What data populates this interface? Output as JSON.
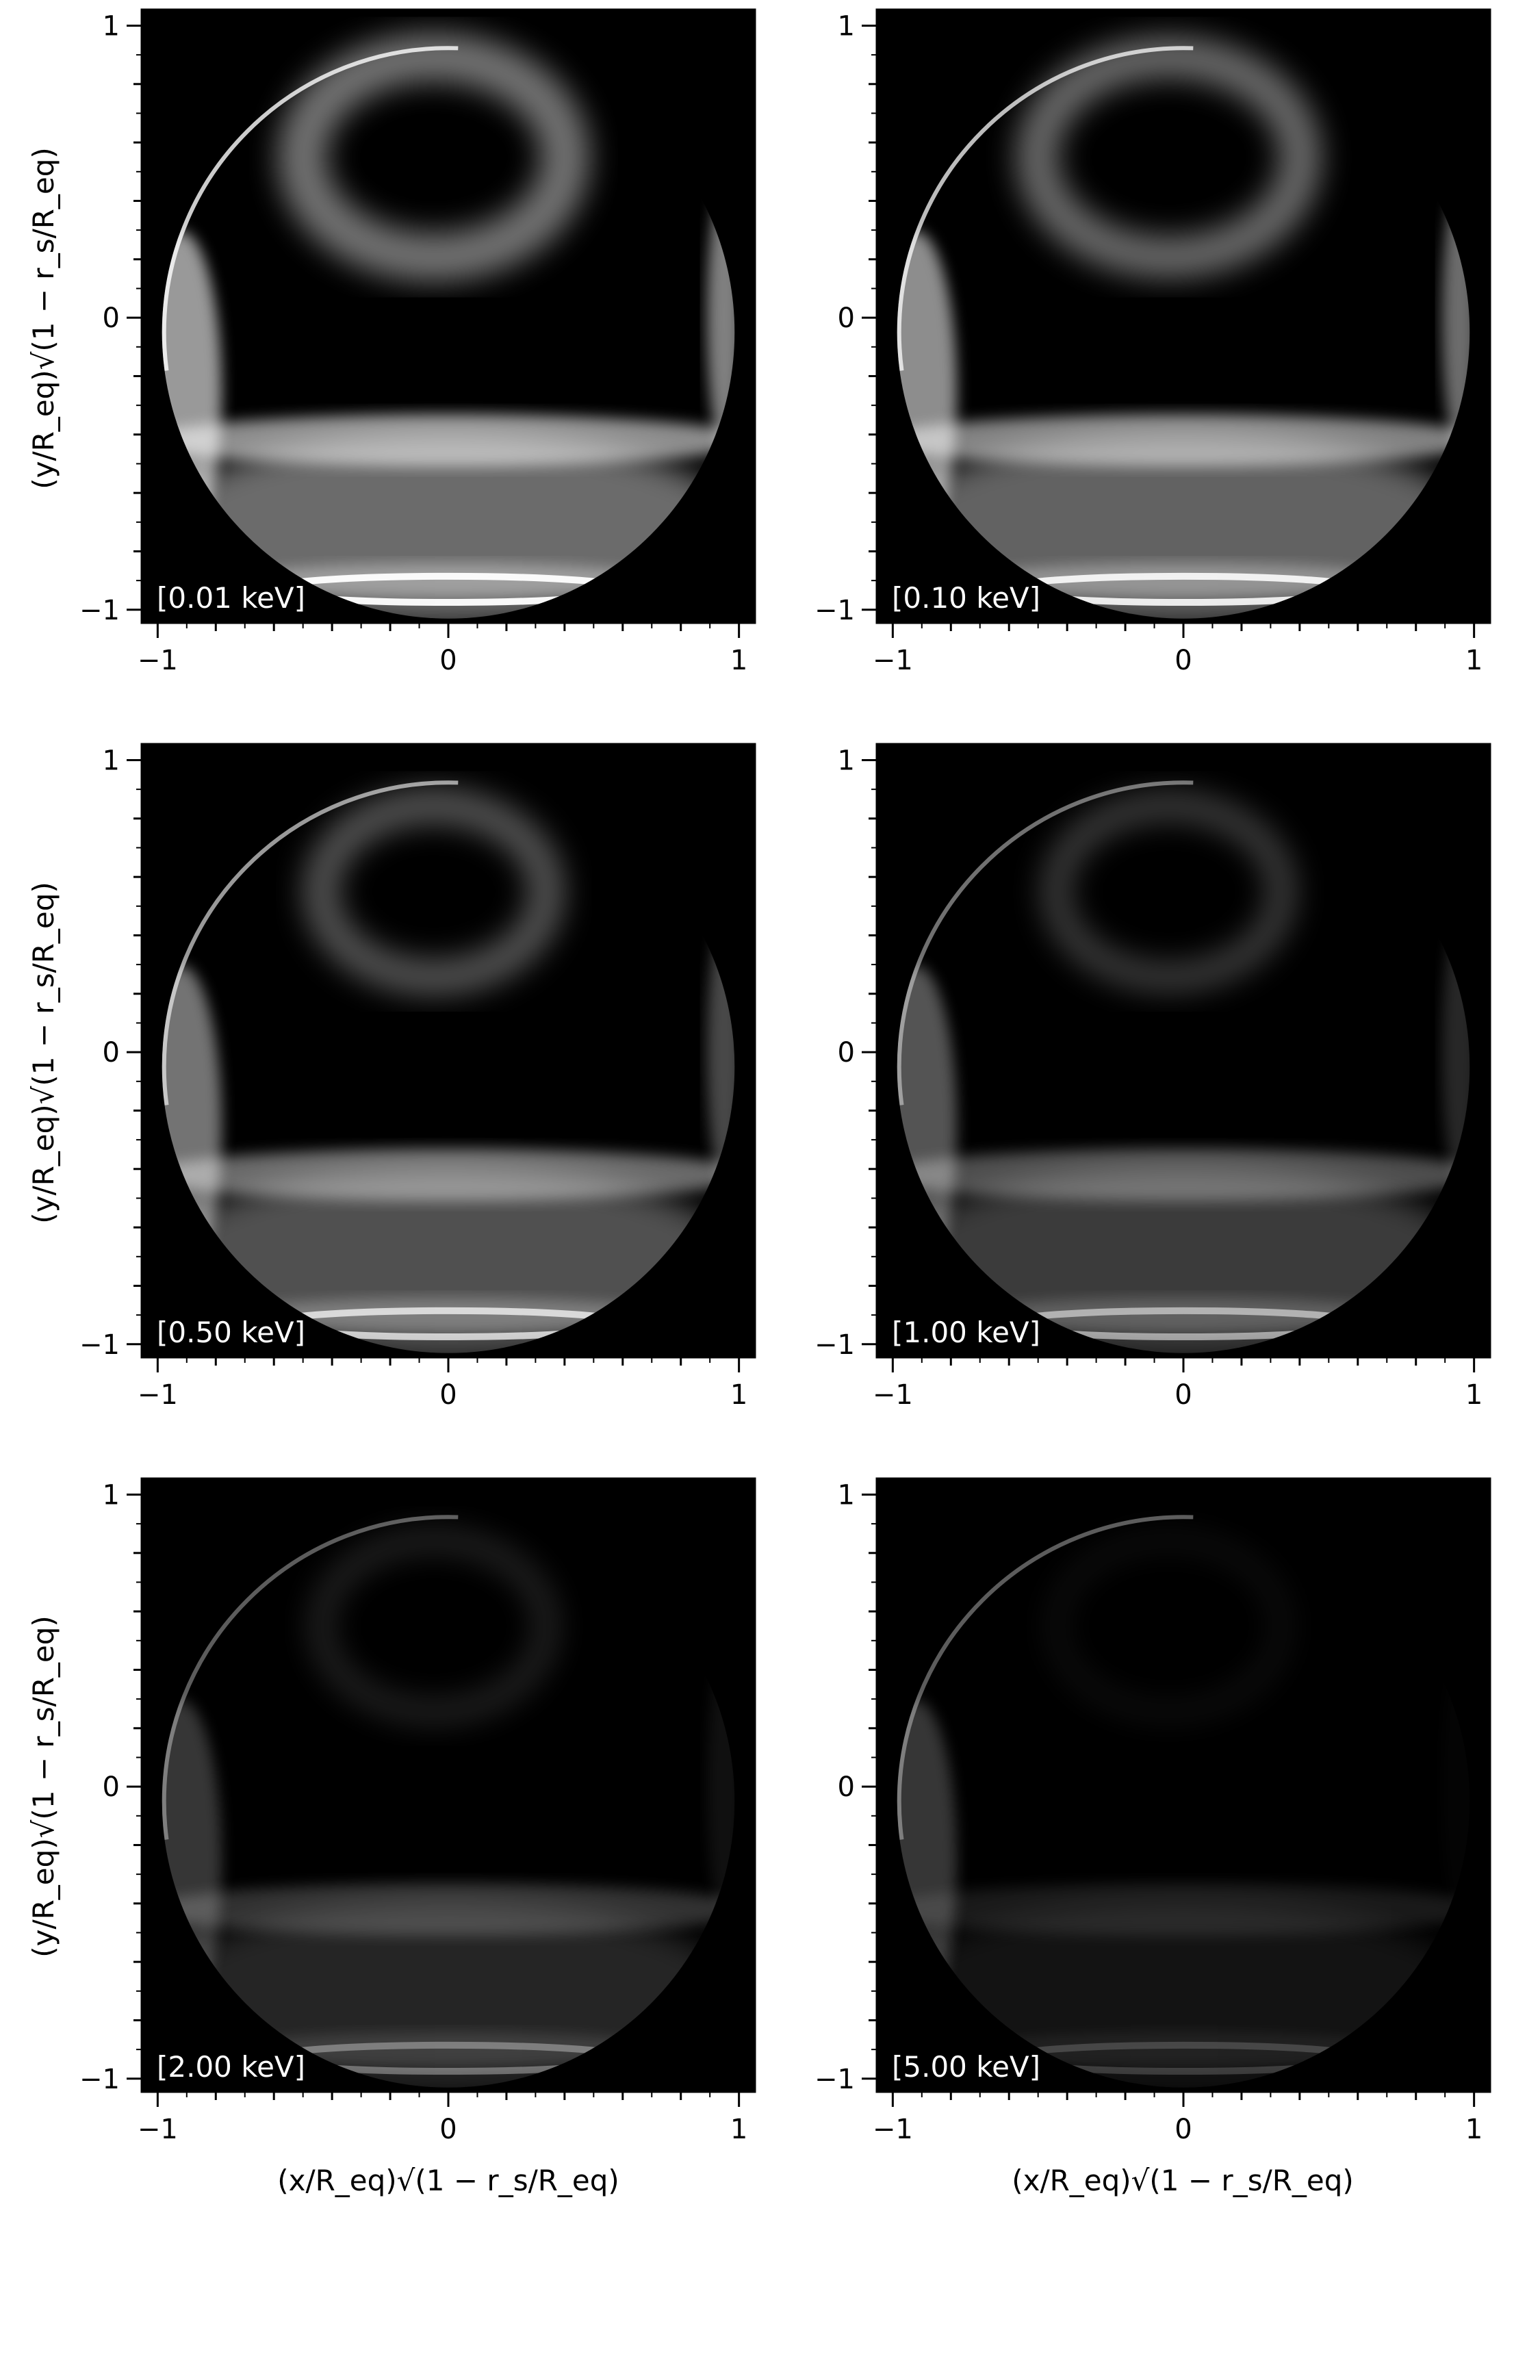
{
  "figure": {
    "x_axis_label": "(x/R_eq)√(1 − r_s/R_eq)",
    "y_axis_label": "(y/R_eq)√(1 − r_s/R_eq)",
    "x_ticks": [
      "−1",
      "0",
      "1"
    ],
    "y_ticks": [
      "1",
      "0",
      "−1"
    ],
    "panels": [
      {
        "label": "[0.01 keV]",
        "energy_keV": 0.01,
        "relative_brightness": 1.0
      },
      {
        "label": "[0.10 keV]",
        "energy_keV": 0.1,
        "relative_brightness": 0.92
      },
      {
        "label": "[0.50 keV]",
        "energy_keV": 0.5,
        "relative_brightness": 0.75
      },
      {
        "label": "[1.00 keV]",
        "energy_keV": 1.0,
        "relative_brightness": 0.55
      },
      {
        "label": "[2.00 keV]",
        "energy_keV": 2.0,
        "relative_brightness": 0.35
      },
      {
        "label": "[5.00 keV]",
        "energy_keV": 5.0,
        "relative_brightness": 0.18
      }
    ],
    "colors": {
      "background": "#000000",
      "emission": "#ffffff",
      "frame": "#000000"
    }
  }
}
